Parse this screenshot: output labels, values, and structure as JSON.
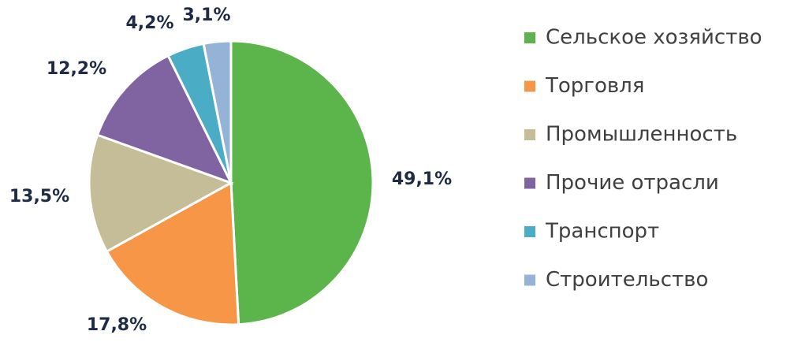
{
  "chart_data": {
    "type": "pie",
    "categories": [
      "Сельское хозяйство",
      "Торговля",
      "Промышленность",
      "Прочие отрасли",
      "Транспорт",
      "Строительство"
    ],
    "values": [
      49.1,
      17.8,
      13.5,
      12.2,
      4.2,
      3.1
    ],
    "value_labels": [
      "49,1%",
      "17,8%",
      "13,5%",
      "12,2%",
      "4,2%",
      "3,1%"
    ],
    "colors": [
      "#5bb54b",
      "#f79646",
      "#c4bd97",
      "#8064a2",
      "#4bacc6",
      "#95b3d7"
    ],
    "legend": "right"
  }
}
